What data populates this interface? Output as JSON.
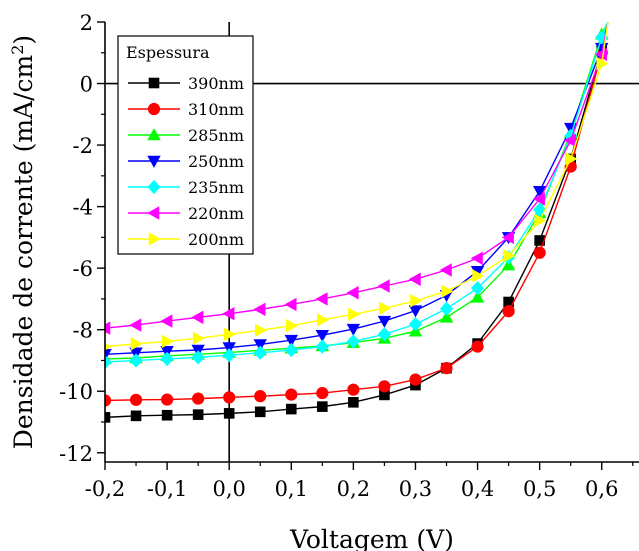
{
  "chart_data": {
    "type": "line",
    "title": "",
    "xlabel": "Voltagem (V)",
    "ylabel": "Densidade de corrente (mA/cm",
    "ylabel_sup": "2",
    "ylabel_close": ")",
    "xlim": [
      -0.2,
      0.66
    ],
    "ylim": [
      -12.3,
      2.0
    ],
    "x_ticks": [
      -0.2,
      -0.1,
      0.0,
      0.1,
      0.2,
      0.3,
      0.4,
      0.5,
      0.6
    ],
    "x_tick_labels": [
      "-0,2",
      "-0,1",
      "0,0",
      "0,1",
      "0,2",
      "0,3",
      "0,4",
      "0,5",
      "0,6"
    ],
    "y_ticks": [
      -12,
      -10,
      -8,
      -6,
      -4,
      -2,
      0,
      2
    ],
    "y_tick_labels": [
      "-12",
      "-10",
      "-8",
      "-6",
      "-4",
      "-2",
      "0",
      "2"
    ],
    "reference_lines": [
      {
        "axis": "x",
        "value": 0.0
      },
      {
        "axis": "y",
        "value": 0.0
      }
    ],
    "legend": {
      "title": "Espessura",
      "placement": "top-left"
    },
    "x": [
      -0.2,
      -0.15,
      -0.1,
      -0.05,
      0.0,
      0.05,
      0.1,
      0.15,
      0.2,
      0.25,
      0.3,
      0.35,
      0.4,
      0.45,
      0.5,
      0.55,
      0.6,
      0.61
    ],
    "series": [
      {
        "name": "390nm",
        "color": "#000000",
        "marker": "square",
        "values": [
          -10.85,
          -10.8,
          -10.78,
          -10.76,
          -10.72,
          -10.67,
          -10.58,
          -10.5,
          -10.36,
          -10.12,
          -9.8,
          -9.25,
          -8.45,
          -7.1,
          -5.1,
          -2.45,
          1.1,
          2.0
        ]
      },
      {
        "name": "310nm",
        "color": "#ff0000",
        "marker": "circle",
        "values": [
          -10.3,
          -10.28,
          -10.27,
          -10.24,
          -10.2,
          -10.16,
          -10.11,
          -10.06,
          -9.95,
          -9.84,
          -9.62,
          -9.25,
          -8.55,
          -7.4,
          -5.5,
          -2.7,
          1.0,
          2.0
        ]
      },
      {
        "name": "285nm",
        "color": "#00ff00",
        "marker": "triangle-up",
        "values": [
          -8.95,
          -8.92,
          -8.85,
          -8.8,
          -8.74,
          -8.67,
          -8.6,
          -8.53,
          -8.42,
          -8.28,
          -8.05,
          -7.6,
          -6.95,
          -5.9,
          -4.2,
          -1.6,
          1.6,
          2.0
        ]
      },
      {
        "name": "250nm",
        "color": "#0000ff",
        "marker": "triangle-down",
        "values": [
          -8.8,
          -8.75,
          -8.7,
          -8.66,
          -8.58,
          -8.48,
          -8.34,
          -8.18,
          -7.98,
          -7.72,
          -7.38,
          -6.88,
          -6.1,
          -5.0,
          -3.5,
          -1.45,
          1.15,
          2.0
        ]
      },
      {
        "name": "235nm",
        "color": "#00ffff",
        "marker": "diamond",
        "values": [
          -9.05,
          -9.0,
          -8.95,
          -8.9,
          -8.83,
          -8.75,
          -8.66,
          -8.55,
          -8.38,
          -8.15,
          -7.82,
          -7.32,
          -6.65,
          -5.65,
          -4.1,
          -1.7,
          1.5,
          2.0
        ]
      },
      {
        "name": "220nm",
        "color": "#ff00ff",
        "marker": "triangle-left",
        "values": [
          -7.95,
          -7.85,
          -7.72,
          -7.6,
          -7.48,
          -7.34,
          -7.18,
          -7.0,
          -6.8,
          -6.58,
          -6.36,
          -6.06,
          -5.68,
          -5.0,
          -3.75,
          -1.85,
          0.95,
          2.0
        ]
      },
      {
        "name": "200nm",
        "color": "#ffff00",
        "marker": "triangle-right",
        "values": [
          -8.55,
          -8.46,
          -8.38,
          -8.28,
          -8.15,
          -8.02,
          -7.87,
          -7.68,
          -7.5,
          -7.3,
          -7.06,
          -6.75,
          -6.25,
          -5.6,
          -4.45,
          -2.45,
          0.65,
          2.0
        ]
      }
    ]
  }
}
